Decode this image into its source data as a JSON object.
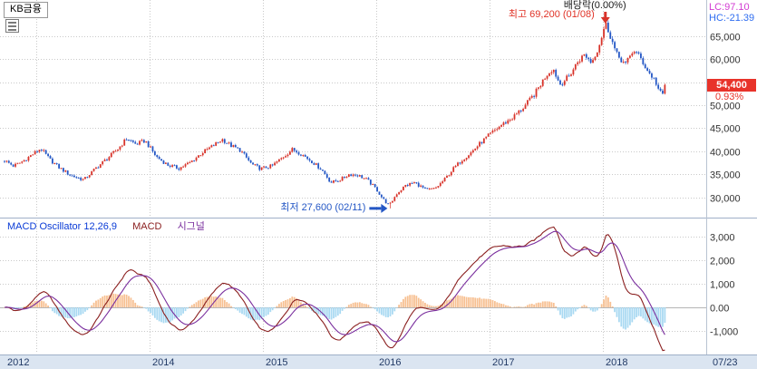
{
  "symbol_tab": {
    "label": "KB금융"
  },
  "right_axis": {
    "lc": "LC:97.10",
    "hc": "HC:-21.39",
    "price": "54,400",
    "change": "0.93%"
  },
  "annotations": {
    "high": "최고 69,200 (01/08)",
    "low": "최저 27,600 (02/11)",
    "dividend": "배당락(0.00%)"
  },
  "macd_header": {
    "title": "MACD Oscillator 12,26,9",
    "macd": "MACD",
    "signal": "시그널"
  },
  "colors": {
    "up_candle": "#d8332a",
    "down_candle": "#2457c5",
    "macd_line": "#8b2020",
    "signal_line": "#7a2f9e",
    "hist_pos": "#f7c092",
    "hist_neg": "#a9d9f2",
    "badge_bg": "#e8332a",
    "lc_color": "#d23bd2",
    "hc_color": "#2f6df0",
    "grid": "#c9c9c9",
    "axis_strip_bg": "#dbe5f1",
    "axis_text": "#223a66"
  },
  "chart_data": {
    "type": "candlestick",
    "title": "KB금융 weekly candlestick chart with MACD oscillator sub-panel",
    "x_domain": [
      2012.68,
      2018.912
    ],
    "series_start": 2012.72,
    "series_end": 2018.555,
    "bars_per_year": 52,
    "x_ticks": [
      {
        "t": 2012.72,
        "label": "2012",
        "grid": false
      },
      {
        "t": 2013.0,
        "label": "",
        "grid": true
      },
      {
        "t": 2014.0,
        "label": "2014",
        "grid": true
      },
      {
        "t": 2015.0,
        "label": "2015",
        "grid": true
      },
      {
        "t": 2016.0,
        "label": "2016",
        "grid": true
      },
      {
        "t": 2017.0,
        "label": "2017",
        "grid": true
      },
      {
        "t": 2018.0,
        "label": "2018",
        "grid": true
      }
    ],
    "x_end_label": "07/23",
    "price_panel": {
      "y_ticks": [
        {
          "v": 65000,
          "label": "65,000"
        },
        {
          "v": 60000,
          "label": "60,000"
        },
        {
          "v": 55000,
          "label": ""
        },
        {
          "v": 50000,
          "label": "50,000"
        },
        {
          "v": 45000,
          "label": "45,000"
        },
        {
          "v": 40000,
          "label": "40,000"
        },
        {
          "v": 35000,
          "label": "35,000"
        },
        {
          "v": 30000,
          "label": "30,000"
        }
      ],
      "last_price": 54400,
      "last_change_pct": 0.93,
      "high_marker": {
        "t": 2018.022,
        "price": 69200
      },
      "low_marker": {
        "t": 2016.115,
        "price": 27600
      },
      "anchors": [
        [
          2012.72,
          38000
        ],
        [
          2012.8,
          36800
        ],
        [
          2012.88,
          37800
        ],
        [
          2012.96,
          39200
        ],
        [
          2013.04,
          40600
        ],
        [
          2013.12,
          38200
        ],
        [
          2013.2,
          36500
        ],
        [
          2013.3,
          34800
        ],
        [
          2013.42,
          33800
        ],
        [
          2013.52,
          36200
        ],
        [
          2013.62,
          38300
        ],
        [
          2013.72,
          40500
        ],
        [
          2013.8,
          42800
        ],
        [
          2013.88,
          41500
        ],
        [
          2013.96,
          42300
        ],
        [
          2014.06,
          38800
        ],
        [
          2014.16,
          37000
        ],
        [
          2014.26,
          36300
        ],
        [
          2014.36,
          37600
        ],
        [
          2014.46,
          39600
        ],
        [
          2014.56,
          41200
        ],
        [
          2014.64,
          42600
        ],
        [
          2014.72,
          41200
        ],
        [
          2014.8,
          40200
        ],
        [
          2014.9,
          37200
        ],
        [
          2014.98,
          36200
        ],
        [
          2015.08,
          36800
        ],
        [
          2015.18,
          38800
        ],
        [
          2015.26,
          40400
        ],
        [
          2015.34,
          39400
        ],
        [
          2015.44,
          37600
        ],
        [
          2015.52,
          36000
        ],
        [
          2015.6,
          33200
        ],
        [
          2015.68,
          33800
        ],
        [
          2015.76,
          35000
        ],
        [
          2015.84,
          34800
        ],
        [
          2015.92,
          33800
        ],
        [
          2016.0,
          31800
        ],
        [
          2016.06,
          29600
        ],
        [
          2016.115,
          28200
        ],
        [
          2016.18,
          30800
        ],
        [
          2016.26,
          32600
        ],
        [
          2016.34,
          33200
        ],
        [
          2016.44,
          31600
        ],
        [
          2016.52,
          31900
        ],
        [
          2016.6,
          33800
        ],
        [
          2016.68,
          36200
        ],
        [
          2016.76,
          38200
        ],
        [
          2016.84,
          39800
        ],
        [
          2016.92,
          41800
        ],
        [
          2017.0,
          43600
        ],
        [
          2017.1,
          45600
        ],
        [
          2017.2,
          47200
        ],
        [
          2017.3,
          49500
        ],
        [
          2017.4,
          52500
        ],
        [
          2017.5,
          56500
        ],
        [
          2017.56,
          58000
        ],
        [
          2017.62,
          54500
        ],
        [
          2017.7,
          56200
        ],
        [
          2017.78,
          59500
        ],
        [
          2017.84,
          61000
        ],
        [
          2017.9,
          59200
        ],
        [
          2017.96,
          62500
        ],
        [
          2018.0,
          65800
        ],
        [
          2018.022,
          67800
        ],
        [
          2018.06,
          65500
        ],
        [
          2018.12,
          61000
        ],
        [
          2018.2,
          58800
        ],
        [
          2018.27,
          62000
        ],
        [
          2018.33,
          60300
        ],
        [
          2018.4,
          57200
        ],
        [
          2018.46,
          55400
        ],
        [
          2018.5,
          52800
        ],
        [
          2018.53,
          52200
        ],
        [
          2018.555,
          54400
        ]
      ]
    },
    "macd_panel": {
      "params": [
        12,
        26,
        9
      ],
      "y_ticks": [
        {
          "v": 3000,
          "label": "3,000"
        },
        {
          "v": 2000,
          "label": "2,000"
        },
        {
          "v": 1000,
          "label": "1,000"
        },
        {
          "v": 0,
          "label": "0.00"
        },
        {
          "v": -1000,
          "label": "-1,000"
        }
      ]
    }
  }
}
